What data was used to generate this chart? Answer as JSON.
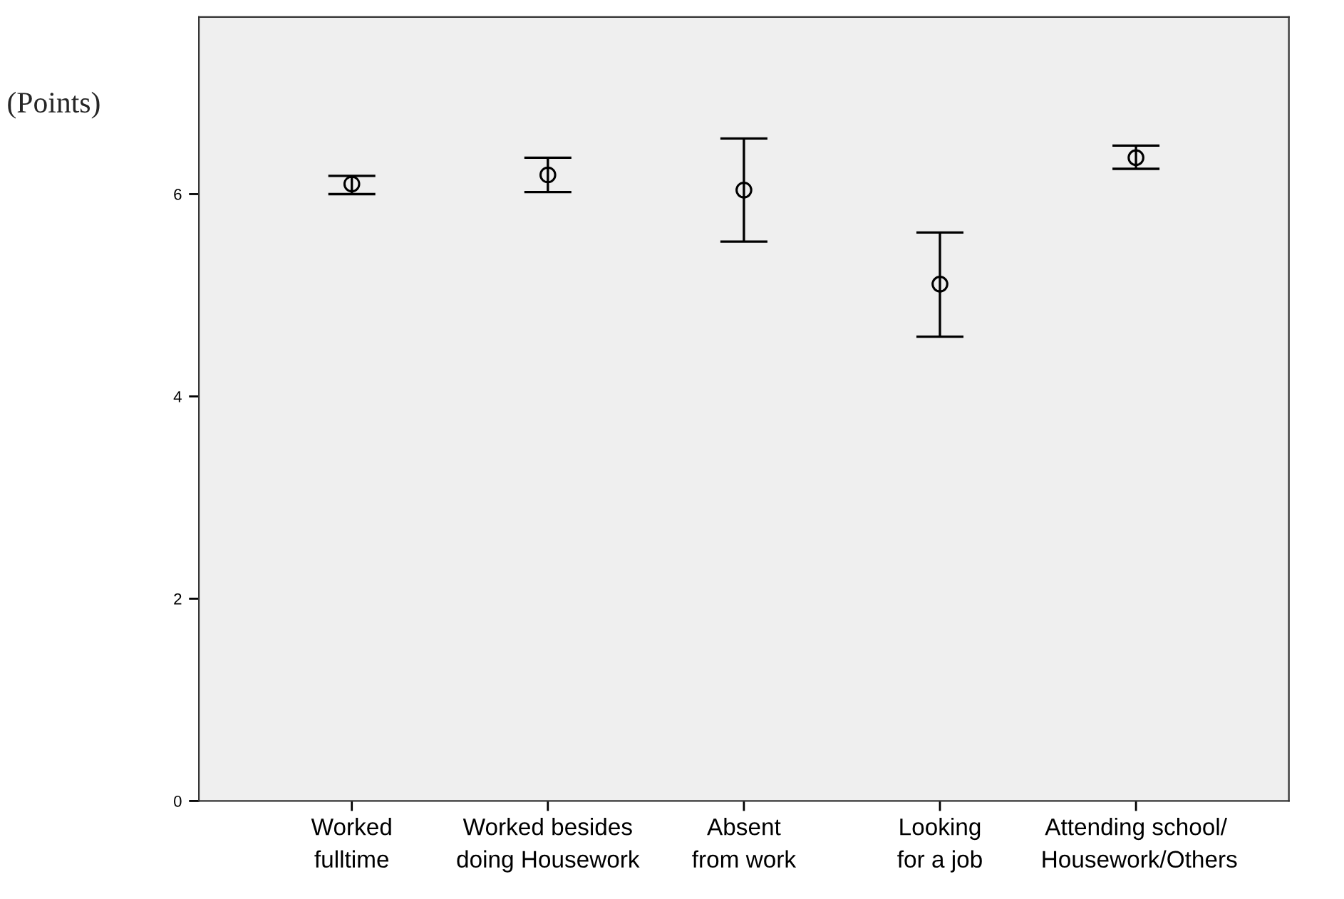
{
  "chart_data": {
    "type": "scatter",
    "ylabel": "(Points)",
    "categories": [
      "Worked\nfulltime",
      "Worked besides\ndoing Housework",
      "Absent\nfrom work",
      "Looking\nfor a job",
      "Attending school/\n Housework/Others"
    ],
    "series": [
      {
        "color": "#000000",
        "values": [
          6.1,
          6.19,
          6.04,
          5.11,
          6.36
        ],
        "errors": [
          [
            6.0,
            6.18
          ],
          [
            6.02,
            6.36
          ],
          [
            5.53,
            6.55
          ],
          [
            4.59,
            5.62
          ],
          [
            6.25,
            6.48
          ]
        ]
      }
    ],
    "ylim": [
      0,
      7.75
    ],
    "yticks": [
      0,
      2,
      4,
      6
    ],
    "marker": "circle",
    "grid": false,
    "legend": false
  }
}
